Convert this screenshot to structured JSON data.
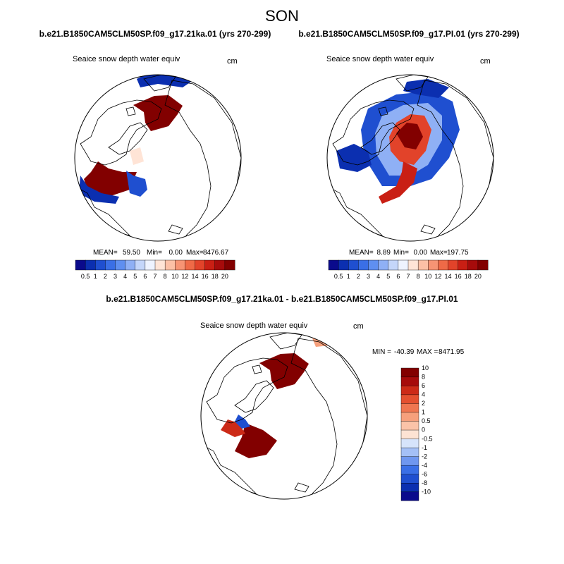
{
  "page": {
    "title": "SON",
    "diff_title": "b.e21.B1850CAM5CLM50SP.f09_g17.21ka.01 - b.e21.B1850CAM5CLM50SP.f09_g17.PI.01"
  },
  "colors": {
    "land_outline": "#000000",
    "circle_outline": "#000000",
    "abs_scale": [
      "#0a0a8c",
      "#0b2fb0",
      "#1f4fd0",
      "#3a6fe6",
      "#5f8ff0",
      "#8fb0f5",
      "#c4d6fa",
      "#eef3ff",
      "#ffe4d6",
      "#fcc0a6",
      "#f79474",
      "#ef6a47",
      "#e2432a",
      "#c91f14",
      "#a60b0b",
      "#820000"
    ],
    "diff_scale": [
      "#0a0a8c",
      "#0b2fb0",
      "#1f4fd0",
      "#3a6fe6",
      "#6f97ef",
      "#a4c0f6",
      "#d6e4fb",
      "#fde3d3",
      "#fbc3a8",
      "#f6a07c",
      "#ef7650",
      "#e4502f",
      "#cc2a17",
      "#a60b0b",
      "#820000"
    ]
  },
  "chart_data": [
    {
      "type": "heatmap",
      "projection": "north-polar-stereographic",
      "case": "b.e21.B1850CAM5CLM50SP.f09_g17.21ka.01 (yrs 270-299)",
      "variable": "Seaice snow depth water equiv",
      "units": "cm",
      "stats": {
        "mean_label": "MEAN=",
        "mean": "59.50",
        "min_label": "Min=",
        "min": "0.00",
        "max_label": "Max=",
        "max": "8476.67"
      },
      "colorbar": {
        "orientation": "horizontal",
        "levels": [
          "0.5",
          "1",
          "2",
          "3",
          "4",
          "5",
          "6",
          "7",
          "8",
          "10",
          "12",
          "14",
          "16",
          "18",
          "20"
        ]
      },
      "regions": [
        {
          "name": "central-arctic",
          "level_index": 15,
          "points": [
            [
              -20,
              65
            ],
            [
              -35,
              75
            ],
            [
              -5,
              88
            ],
            [
              15,
              89
            ],
            [
              35,
              74
            ],
            [
              28,
              62
            ],
            [
              15,
              45
            ],
            [
              -10,
              38
            ],
            [
              -18,
              50
            ]
          ]
        },
        {
          "name": "atlantic-sector",
          "level_index": 15,
          "points": [
            [
              -95,
              -20
            ],
            [
              -105,
              -30
            ],
            [
              -100,
              -45
            ],
            [
              -70,
              -55
            ],
            [
              -40,
              -45
            ],
            [
              -30,
              -20
            ],
            [
              -50,
              -20
            ],
            [
              -70,
              -15
            ],
            [
              -85,
              -5
            ]
          ]
        },
        {
          "name": "atlantic-edge-blue",
          "level_index": 1,
          "points": [
            [
              -110,
              -25
            ],
            [
              -112,
              -50
            ],
            [
              -90,
              -62
            ],
            [
              -60,
              -65
            ],
            [
              -55,
              -55
            ],
            [
              -80,
              -50
            ],
            [
              -100,
              -40
            ]
          ]
        },
        {
          "name": "labrador-blue",
          "level_index": 2,
          "points": [
            [
              -45,
              -18
            ],
            [
              -35,
              -25
            ],
            [
              -18,
              -30
            ],
            [
              -15,
              -45
            ],
            [
              -25,
              -55
            ],
            [
              -40,
              -50
            ]
          ]
        },
        {
          "name": "pacific-edge",
          "level_index": 1,
          "points": [
            [
              -30,
              112
            ],
            [
              -15,
              120
            ],
            [
              20,
              118
            ],
            [
              50,
              110
            ],
            [
              35,
              100
            ],
            [
              0,
              105
            ],
            [
              -25,
              100
            ]
          ]
        },
        {
          "name": "baffin-strip",
          "level_index": 8,
          "points": [
            [
              -40,
              10
            ],
            [
              -25,
              15
            ],
            [
              -20,
              -5
            ],
            [
              -35,
              -10
            ]
          ]
        }
      ]
    },
    {
      "type": "heatmap",
      "projection": "north-polar-stereographic",
      "case": "b.e21.B1850CAM5CLM50SP.f09_g17.PI.01 (yrs 270-299)",
      "variable": "Seaice snow depth water equiv",
      "units": "cm",
      "stats": {
        "mean_label": "MEAN=",
        "mean": "8.89",
        "min_label": "Min=",
        "min": "0.00",
        "max_label": "Max=",
        "max": "197.75"
      },
      "colorbar": {
        "orientation": "horizontal",
        "levels": [
          "0.5",
          "1",
          "2",
          "3",
          "4",
          "5",
          "6",
          "7",
          "8",
          "10",
          "12",
          "14",
          "16",
          "18",
          "20"
        ]
      },
      "regions": [
        {
          "name": "arctic-outer-blue",
          "level_index": 2,
          "points": [
            [
              -70,
              40
            ],
            [
              -60,
              70
            ],
            [
              -20,
              90
            ],
            [
              30,
              95
            ],
            [
              60,
              80
            ],
            [
              70,
              40
            ],
            [
              55,
              0
            ],
            [
              30,
              -30
            ],
            [
              0,
              -40
            ],
            [
              -40,
              -40
            ],
            [
              -65,
              0
            ]
          ]
        },
        {
          "name": "arctic-mid-light",
          "level_index": 5,
          "points": [
            [
              -50,
              35
            ],
            [
              -40,
              60
            ],
            [
              -10,
              75
            ],
            [
              25,
              78
            ],
            [
              45,
              60
            ],
            [
              45,
              25
            ],
            [
              25,
              -10
            ],
            [
              0,
              -25
            ],
            [
              -30,
              -25
            ],
            [
              -48,
              5
            ]
          ]
        },
        {
          "name": "arctic-inner-red",
          "level_index": 12,
          "points": [
            [
              -30,
              30
            ],
            [
              -20,
              50
            ],
            [
              0,
              62
            ],
            [
              20,
              60
            ],
            [
              30,
              40
            ],
            [
              22,
              10
            ],
            [
              5,
              -10
            ],
            [
              -15,
              -5
            ],
            [
              -28,
              10
            ]
          ]
        },
        {
          "name": "arctic-core",
          "level_index": 15,
          "points": [
            [
              -20,
              35
            ],
            [
              -5,
              50
            ],
            [
              10,
              48
            ],
            [
              18,
              30
            ],
            [
              8,
              12
            ],
            [
              -8,
              15
            ]
          ]
        },
        {
          "name": "red-tail",
          "level_index": 13,
          "points": [
            [
              -10,
              -5
            ],
            [
              10,
              -15
            ],
            [
              5,
              -35
            ],
            [
              -15,
              -55
            ],
            [
              -40,
              -65
            ],
            [
              -45,
              -55
            ],
            [
              -20,
              -40
            ],
            [
              -12,
              -20
            ]
          ]
        },
        {
          "name": "west-blue",
          "level_index": 1,
          "points": [
            [
              -105,
              10
            ],
            [
              -100,
              -15
            ],
            [
              -75,
              -20
            ],
            [
              -55,
              -10
            ],
            [
              -60,
              10
            ],
            [
              -80,
              20
            ]
          ]
        },
        {
          "name": "pacific-blue",
          "level_index": 1,
          "points": [
            [
              -5,
              108
            ],
            [
              25,
              112
            ],
            [
              55,
              100
            ],
            [
              40,
              85
            ],
            [
              10,
              90
            ],
            [
              -10,
              95
            ]
          ]
        }
      ]
    },
    {
      "type": "heatmap",
      "projection": "north-polar-stereographic",
      "variable": "Seaice snow depth water equiv",
      "units": "cm",
      "stats": {
        "min_label": "MIN =",
        "min": "-40.39",
        "max_label": "MAX =",
        "max": "8471.95"
      },
      "colorbar": {
        "orientation": "vertical",
        "levels": [
          "-10",
          "-8",
          "-6",
          "-4",
          "-2",
          "-1",
          "-0.5",
          "0",
          "0.5",
          "1",
          "2",
          "4",
          "6",
          "8",
          "10"
        ]
      },
      "regions": [
        {
          "name": "central-arctic-diff",
          "level_index": 15,
          "points": [
            [
              -20,
              65
            ],
            [
              -35,
              75
            ],
            [
              -5,
              88
            ],
            [
              15,
              89
            ],
            [
              35,
              74
            ],
            [
              28,
              62
            ],
            [
              15,
              45
            ],
            [
              -10,
              38
            ],
            [
              -18,
              50
            ]
          ]
        },
        {
          "name": "atlantic-diff",
          "level_index": 15,
          "points": [
            [
              -55,
              -10
            ],
            [
              -30,
              -20
            ],
            [
              -10,
              -35
            ],
            [
              -25,
              -55
            ],
            [
              -50,
              -60
            ],
            [
              -70,
              -50
            ],
            [
              -60,
              -30
            ]
          ]
        },
        {
          "name": "labrador-diff-red",
          "level_index": 12,
          "points": [
            [
              -80,
              -5
            ],
            [
              -65,
              -10
            ],
            [
              -55,
              -25
            ],
            [
              -70,
              -30
            ],
            [
              -90,
              -20
            ]
          ]
        },
        {
          "name": "labrador-diff-blue",
          "level_index": 2,
          "points": [
            [
              -65,
              2
            ],
            [
              -55,
              -5
            ],
            [
              -48,
              -15
            ],
            [
              -60,
              -18
            ],
            [
              -70,
              -8
            ]
          ]
        },
        {
          "name": "pacific-diff",
          "level_index": 9,
          "points": [
            [
              40,
              110
            ],
            [
              60,
              112
            ],
            [
              65,
              100
            ],
            [
              45,
              98
            ]
          ]
        },
        {
          "name": "pacific-diff-2",
          "level_index": 9,
          "points": [
            [
              85,
              100
            ],
            [
              100,
              102
            ],
            [
              98,
              92
            ],
            [
              85,
              92
            ]
          ]
        }
      ]
    }
  ]
}
